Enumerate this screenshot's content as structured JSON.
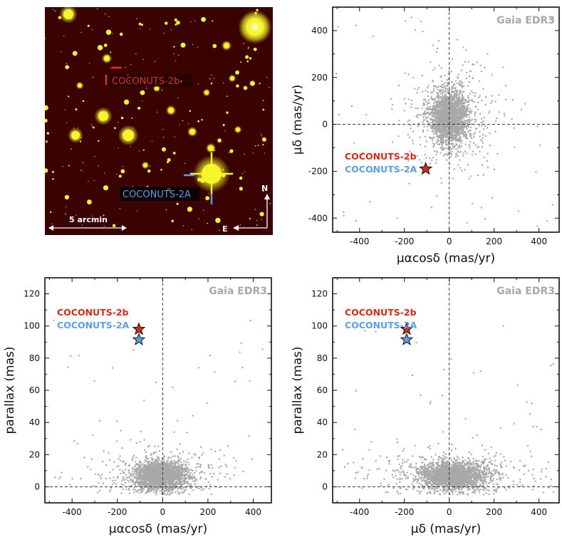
{
  "image_panel": {
    "label_b": "COCONUTS-2b",
    "label_a": "COCONUTS-2A",
    "scale_label": "5 arcmin",
    "north": "N",
    "east": "E",
    "colors": {
      "background": "#3a0200",
      "star": "#f4f52a",
      "b_marker": "#e0341f",
      "a_marker": "#5b9ee6"
    }
  },
  "chart_data": [
    {
      "type": "scatter",
      "watermark": "Gaia EDR3",
      "xlabel": "μαcosδ (mas/yr)",
      "ylabel": "μδ (mas/yr)",
      "xlim": [
        -520,
        490
      ],
      "ylim": [
        -460,
        500
      ],
      "xticks": [
        -400,
        -200,
        0,
        200,
        400
      ],
      "yticks": [
        -400,
        -200,
        0,
        200,
        400
      ],
      "reference_lines": {
        "x": 0,
        "y": 0
      },
      "background_cloud": {
        "color": "#a8a8a8",
        "center": [
          0,
          30
        ],
        "spread": [
          40,
          55
        ]
      },
      "points": [
        {
          "name": "COCONUTS-2b",
          "x": -105,
          "y": -190,
          "color": "#d42a16"
        },
        {
          "name": "COCONUTS-2A",
          "x": -105,
          "y": -190,
          "color": "#5b9ee6"
        }
      ],
      "legend": "left"
    },
    {
      "type": "scatter",
      "watermark": "Gaia EDR3",
      "xlabel": "μαcosδ (mas/yr)",
      "ylabel": "parallax (mas)",
      "xlim": [
        -520,
        480
      ],
      "ylim": [
        -10,
        130
      ],
      "xticks": [
        -400,
        -200,
        0,
        200,
        400
      ],
      "yticks": [
        0,
        20,
        40,
        60,
        80,
        100,
        120
      ],
      "reference_lines": {
        "x": 0,
        "y": 0
      },
      "background_cloud": {
        "color": "#a8a8a8",
        "center": [
          -10,
          7
        ],
        "spread": [
          55,
          4
        ]
      },
      "points": [
        {
          "name": "COCONUTS-2b",
          "x": -105,
          "y": 98,
          "color": "#d42a16"
        },
        {
          "name": "COCONUTS-2A",
          "x": -105,
          "y": 91.5,
          "color": "#5b9ee6"
        }
      ],
      "legend": "left"
    },
    {
      "type": "scatter",
      "watermark": "Gaia EDR3",
      "xlabel": "μδ (mas/yr)",
      "ylabel": "parallax (mas)",
      "xlim": [
        -520,
        490
      ],
      "ylim": [
        -10,
        130
      ],
      "xticks": [
        -400,
        -200,
        0,
        200,
        400
      ],
      "yticks": [
        0,
        20,
        40,
        60,
        80,
        100,
        120
      ],
      "reference_lines": {
        "x": 0,
        "y": 0
      },
      "background_cloud": {
        "color": "#a8a8a8",
        "center": [
          15,
          7
        ],
        "spread": [
          75,
          4
        ]
      },
      "points": [
        {
          "name": "COCONUTS-2b",
          "x": -190,
          "y": 98,
          "color": "#d42a16"
        },
        {
          "name": "COCONUTS-2A",
          "x": -190,
          "y": 91.5,
          "color": "#5b9ee6"
        }
      ],
      "legend": "left"
    }
  ]
}
